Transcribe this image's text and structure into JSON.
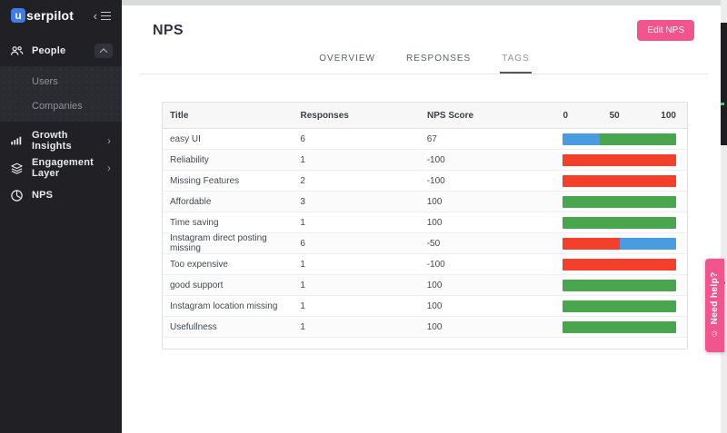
{
  "app": {
    "logo_badge": "u",
    "logo_text": "serpilot",
    "collapse_chevron": "‹"
  },
  "sidebar": {
    "items": [
      {
        "label": "People",
        "icon": "people-icon",
        "expanded": true,
        "children": [
          {
            "label": "Users"
          },
          {
            "label": "Companies"
          }
        ]
      },
      {
        "label": "Growth Insights",
        "icon": "bar-chart-icon",
        "chevron": "›"
      },
      {
        "label": "Engagement Layer",
        "icon": "layers-icon",
        "chevron": "›"
      },
      {
        "label": "NPS",
        "icon": "gauge-icon"
      }
    ]
  },
  "header": {
    "title": "NPS",
    "edit_button_label": "Edit NPS"
  },
  "tabs": [
    {
      "label": "OVERVIEW",
      "active": false
    },
    {
      "label": "RESPONSES",
      "active": false
    },
    {
      "label": "TAGS",
      "active": true
    }
  ],
  "table": {
    "columns": {
      "title": "Title",
      "responses": "Responses",
      "score": "NPS Score"
    },
    "scale": [
      "0",
      "50",
      "100"
    ],
    "rows": [
      {
        "title": "easy UI",
        "responses": "6",
        "score": "67",
        "segments": [
          {
            "type": "passive",
            "pct": 33
          },
          {
            "type": "promoter",
            "pct": 67
          }
        ]
      },
      {
        "title": "Reliability",
        "responses": "1",
        "score": "-100",
        "segments": [
          {
            "type": "detractor",
            "pct": 100
          }
        ]
      },
      {
        "title": "Missing Features",
        "responses": "2",
        "score": "-100",
        "segments": [
          {
            "type": "detractor",
            "pct": 100
          }
        ]
      },
      {
        "title": "Affordable",
        "responses": "3",
        "score": "100",
        "segments": [
          {
            "type": "promoter",
            "pct": 100
          }
        ]
      },
      {
        "title": "Time saving",
        "responses": "1",
        "score": "100",
        "segments": [
          {
            "type": "promoter",
            "pct": 100
          }
        ]
      },
      {
        "title": "Instagram direct posting missing",
        "responses": "6",
        "score": "-50",
        "segments": [
          {
            "type": "detractor",
            "pct": 50
          },
          {
            "type": "passive",
            "pct": 50
          }
        ]
      },
      {
        "title": "Too expensive",
        "responses": "1",
        "score": "-100",
        "segments": [
          {
            "type": "detractor",
            "pct": 100
          }
        ]
      },
      {
        "title": "good support",
        "responses": "1",
        "score": "100",
        "segments": [
          {
            "type": "promoter",
            "pct": 100
          }
        ]
      },
      {
        "title": "Instagram location missing",
        "responses": "1",
        "score": "100",
        "segments": [
          {
            "type": "promoter",
            "pct": 100
          }
        ]
      },
      {
        "title": "Usefullness",
        "responses": "1",
        "score": "100",
        "segments": [
          {
            "type": "promoter",
            "pct": 100
          }
        ]
      }
    ]
  },
  "help_tab": {
    "label": "Need help?",
    "icon": "smiley-icon"
  },
  "colors": {
    "detractor": "#f2402d",
    "passive": "#4a9ce0",
    "promoter": "#4aa64e",
    "accent_pink": "#f2558c",
    "logo_blue": "#3e7de9"
  }
}
